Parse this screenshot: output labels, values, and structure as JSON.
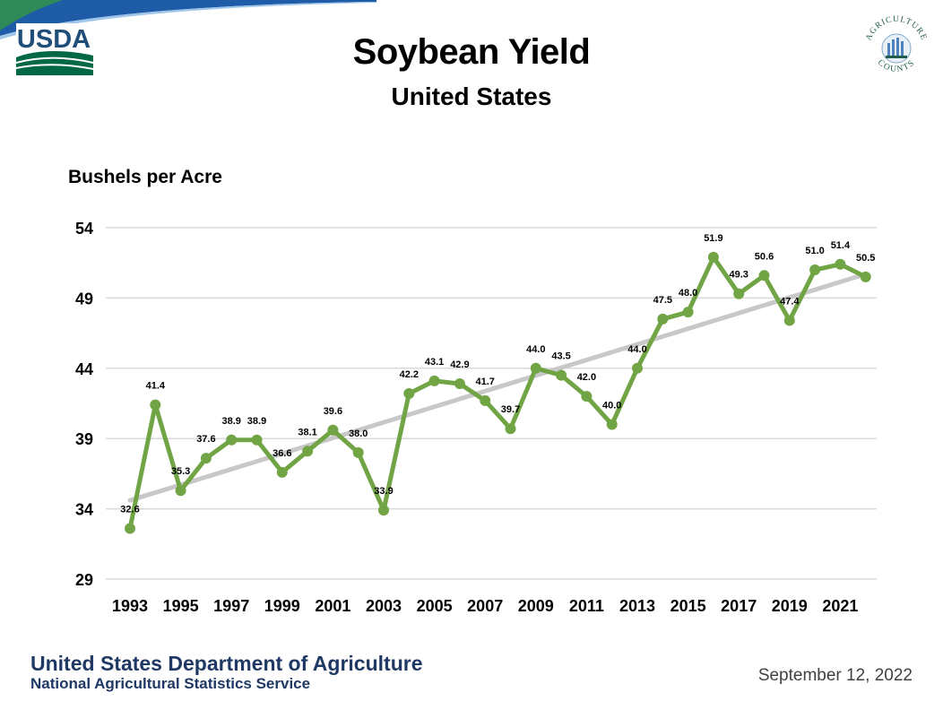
{
  "header": {
    "usda_logo_text": "USDA",
    "ag_logo_text_top": "AGRICULTURE",
    "ag_logo_text_bottom": "COUNTS"
  },
  "chart_data": {
    "type": "line",
    "title": "Soybean Yield",
    "subtitle": "United States",
    "ylabel": "Bushels per Acre",
    "xlabel": "",
    "ylim": [
      29,
      54
    ],
    "yticks": [
      54,
      49,
      44,
      39,
      34,
      29
    ],
    "xtick_labels": [
      "1993",
      "1995",
      "1997",
      "1999",
      "2001",
      "2003",
      "2005",
      "2007",
      "2009",
      "2011",
      "2013",
      "2015",
      "2017",
      "2019",
      "2021"
    ],
    "grid": true,
    "x": [
      1993,
      1994,
      1995,
      1996,
      1997,
      1998,
      1999,
      2000,
      2001,
      2002,
      2003,
      2004,
      2005,
      2006,
      2007,
      2008,
      2009,
      2010,
      2011,
      2012,
      2013,
      2014,
      2015,
      2016,
      2017,
      2018,
      2019,
      2020,
      2021,
      2022
    ],
    "values": [
      32.6,
      41.4,
      35.3,
      37.6,
      38.9,
      38.9,
      36.6,
      38.1,
      39.6,
      38.0,
      33.9,
      42.2,
      43.1,
      42.9,
      41.7,
      39.7,
      44.0,
      43.5,
      42.0,
      40.0,
      44.0,
      47.5,
      48.0,
      51.9,
      49.3,
      50.6,
      47.4,
      51.0,
      51.4,
      50.5
    ],
    "labels": [
      "32.6",
      "41.4",
      "35.3",
      "37.6",
      "38.9",
      "38.9",
      "36.6",
      "38.1",
      "39.6",
      "38.0",
      "33.9",
      "42.2",
      "43.1",
      "42.9",
      "41.7",
      "39.7",
      "44.0",
      "43.5",
      "42.0",
      "40.0",
      "44.0",
      "47.5",
      "48.0",
      "51.9",
      "49.3",
      "50.6",
      "47.4",
      "51.0",
      "51.4",
      "50.5"
    ],
    "trend": {
      "x": [
        1993,
        2022
      ],
      "values": [
        34.6,
        50.7
      ]
    },
    "colors": {
      "series": "#70a444",
      "trend": "#c8c8c8",
      "grid": "#d9d9d9"
    }
  },
  "footer": {
    "org_name": "United States Department of Agriculture",
    "service_name": "National Agricultural Statistics Service",
    "date": "September 12, 2022"
  }
}
